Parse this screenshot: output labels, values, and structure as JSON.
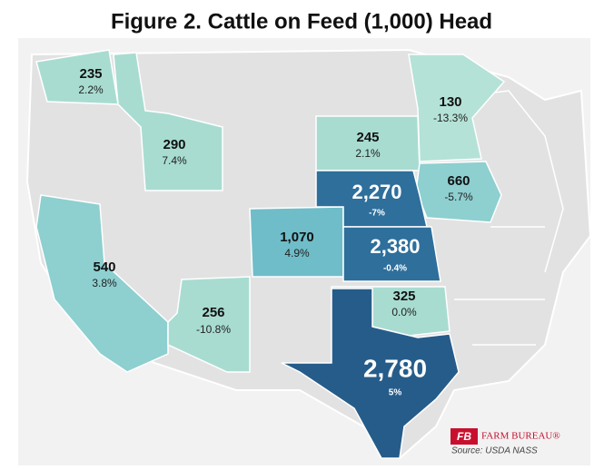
{
  "header": {
    "title": "Figure 2. Cattle on Feed (1,000) Head"
  },
  "states": [
    {
      "value": "235",
      "change": "2.2%",
      "color": "#a8dcd1"
    },
    {
      "value": "290",
      "change": "7.4%",
      "color": "#a8dcd1"
    },
    {
      "value": "540",
      "change": "3.8%",
      "color": "#8ecfd0"
    },
    {
      "value": "256",
      "change": "-10.8%",
      "color": "#a8dcd1"
    },
    {
      "value": "1,070",
      "change": "4.9%",
      "color": "#6fbdc9"
    },
    {
      "value": "245",
      "change": "2.1%",
      "color": "#a8dcd1"
    },
    {
      "value": "130",
      "change": "-13.3%",
      "color": "#b4e2d6"
    },
    {
      "value": "660",
      "change": "-5.7%",
      "color": "#8ecfd0"
    },
    {
      "value": "2,270",
      "change": "-7%",
      "color": "#2e6f9c"
    },
    {
      "value": "2,380",
      "change": "-0.4%",
      "color": "#2e6f9c"
    },
    {
      "value": "325",
      "change": "0.0%",
      "color": "#a8dcd1"
    },
    {
      "value": "2,780",
      "change": "5%",
      "color": "#265c8a"
    }
  ],
  "logo": {
    "brand": "FARM BUREAU®",
    "source": "Source:  USDA NASS"
  }
}
